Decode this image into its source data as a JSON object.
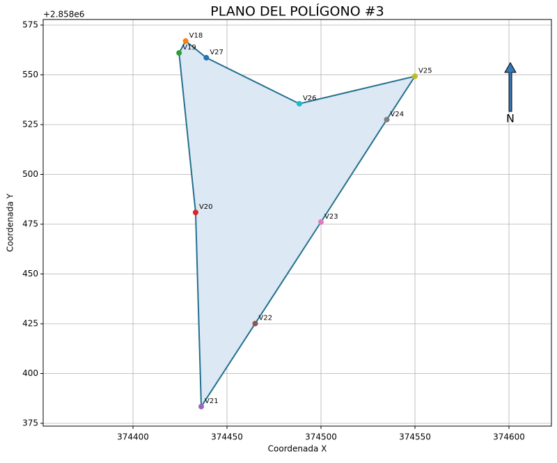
{
  "chart_data": {
    "type": "polygon",
    "title": "PLANO DEL POLÍGONO #3",
    "x_label": "Coordenada X",
    "y_label": "Coordenada Y",
    "y_offset_label": "+2.858e6",
    "north_label": "N",
    "point_labels": [
      "V18",
      "V27",
      "V26",
      "V25",
      "V24",
      "V23",
      "V22",
      "V21",
      "V20",
      "V19"
    ],
    "x": [
      374428,
      374439,
      374488.5,
      374550,
      374535,
      374500,
      374465,
      374436.3,
      374433.3,
      374424.5
    ],
    "values": [
      567,
      558.6,
      535.5,
      549.3,
      527.5,
      476.1,
      425.1,
      383.4,
      480.9,
      561
    ],
    "point_colors": [
      "#ff7f0e",
      "#1f77b4",
      "#17becf",
      "#bcbd22",
      "#7f7f7f",
      "#e377c2",
      "#8c564b",
      "#9467bd",
      "#d62728",
      "#2ca02c"
    ],
    "line_color": "#236f8e",
    "fill_color": "#dce8f3",
    "xlim": [
      374352.2,
      374622.6
    ],
    "ylim": [
      373.6,
      577.8
    ],
    "xticks": [
      374400,
      374450,
      374500,
      374550,
      374600
    ],
    "yticks": [
      375,
      400,
      425,
      450,
      475,
      500,
      525,
      550,
      575
    ],
    "grid": true
  }
}
